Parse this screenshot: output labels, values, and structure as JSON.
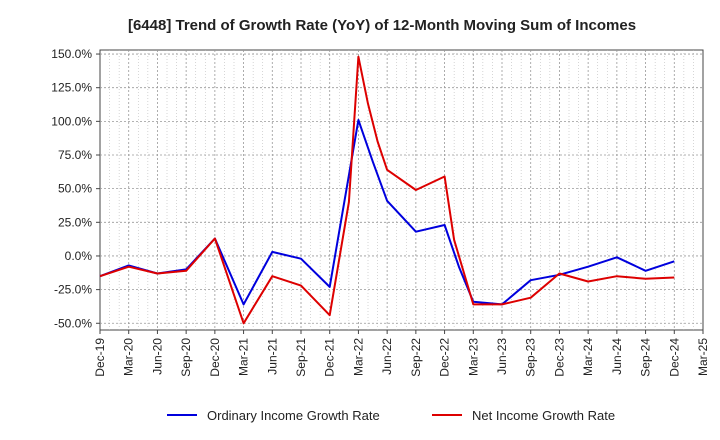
{
  "chart_data": {
    "type": "line",
    "title": "[6448]  Trend of Growth Rate (YoY) of 12-Month Moving Sum of Incomes",
    "xlabel": "",
    "ylabel": "",
    "x_ticks": [
      "Dec-19",
      "Mar-20",
      "Jun-20",
      "Sep-20",
      "Dec-20",
      "Mar-21",
      "Jun-21",
      "Sep-21",
      "Dec-21",
      "Mar-22",
      "Jun-22",
      "Sep-22",
      "Dec-22",
      "Mar-23",
      "Jun-23",
      "Sep-23",
      "Dec-23",
      "Mar-24",
      "Jun-24",
      "Sep-24",
      "Dec-24",
      "Mar-25"
    ],
    "y_ticks": [
      "150.0%",
      "125.0%",
      "100.0%",
      "75.0%",
      "50.0%",
      "25.0%",
      "0.0%",
      "-25.0%",
      "-50.0%"
    ],
    "ylim": [
      -55,
      153
    ],
    "y_tick_values": [
      150,
      125,
      100,
      75,
      50,
      25,
      0,
      -25,
      -50
    ],
    "grid": true,
    "legend_position": "bottom",
    "series": [
      {
        "name": "Ordinary Income Growth Rate",
        "color": "#0000dd",
        "points": [
          [
            0,
            -15
          ],
          [
            1,
            -7
          ],
          [
            2,
            -13
          ],
          [
            3,
            -10
          ],
          [
            4,
            13
          ],
          [
            5,
            -36
          ],
          [
            6,
            3
          ],
          [
            7,
            -2
          ],
          [
            8,
            -23
          ],
          [
            9,
            101
          ],
          [
            9.5,
            70
          ],
          [
            10,
            41
          ],
          [
            11,
            18
          ],
          [
            12,
            23
          ],
          [
            12.5,
            -8
          ],
          [
            13,
            -34
          ],
          [
            14,
            -36
          ],
          [
            15,
            -18
          ],
          [
            16,
            -14
          ],
          [
            17,
            -8
          ],
          [
            18,
            -1
          ],
          [
            19,
            -11
          ],
          [
            20,
            -4
          ]
        ]
      },
      {
        "name": "Net Income Growth Rate",
        "color": "#dd0000",
        "points": [
          [
            0,
            -15
          ],
          [
            1,
            -8
          ],
          [
            2,
            -13
          ],
          [
            3,
            -11
          ],
          [
            4,
            13
          ],
          [
            5,
            -50
          ],
          [
            6,
            -15
          ],
          [
            7,
            -22
          ],
          [
            8,
            -44
          ],
          [
            8.667,
            40
          ],
          [
            9,
            148
          ],
          [
            9.333,
            113
          ],
          [
            9.667,
            85
          ],
          [
            10,
            64
          ],
          [
            11,
            49
          ],
          [
            12,
            59
          ],
          [
            12.333,
            12
          ],
          [
            13,
            -36
          ],
          [
            14,
            -36
          ],
          [
            15,
            -31
          ],
          [
            16,
            -13
          ],
          [
            17,
            -19
          ],
          [
            18,
            -15
          ],
          [
            19,
            -17
          ],
          [
            20,
            -16
          ]
        ]
      }
    ]
  }
}
